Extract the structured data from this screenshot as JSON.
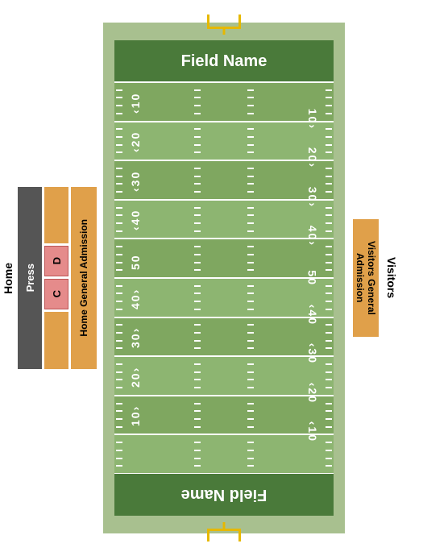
{
  "colors": {
    "field_surround": "#a8c08f",
    "endzone": "#4a7a3a",
    "turf_light": "#8db571",
    "turf_dark": "#7fa760",
    "yardline": "#ffffff",
    "stand_orange": "#e0a04a",
    "stand_pink": "#e58b8b",
    "press_gray": "#555555",
    "goalpost": "#e6b800"
  },
  "home": {
    "label": "Home",
    "press": "Press",
    "ga": "Home General Admission",
    "sections": {
      "c": "C",
      "d": "D"
    }
  },
  "visitors": {
    "label": "Visitors",
    "ga": "Visitors General Admission"
  },
  "field": {
    "endzone_top": "Field Name",
    "endzone_bottom": "Field Name",
    "yard_numbers": [
      "10",
      "20",
      "30",
      "40",
      "50",
      "40",
      "30",
      "20",
      "10"
    ],
    "stripe_count": 10
  }
}
